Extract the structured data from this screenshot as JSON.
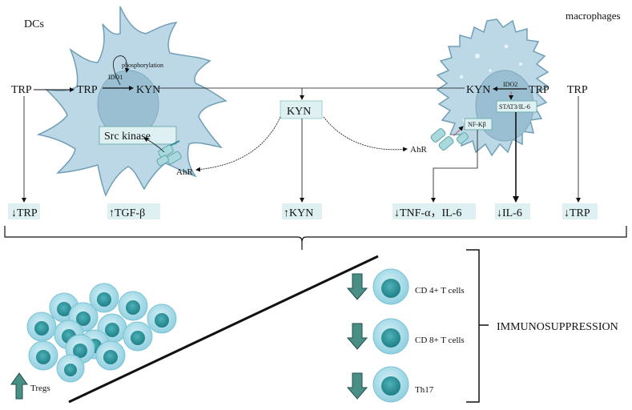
{
  "cells": {
    "dcs": "DCs",
    "macrophages": "macrophages"
  },
  "dc": {
    "trp_outside": "TRP",
    "trp_inside": "TRP",
    "ido1": "IDO1",
    "kyn": "KYN",
    "phosphorylation": "phosphorylation",
    "src_kinase": "Src kinase",
    "ahr": "AhR"
  },
  "center": {
    "kyn": "KYN"
  },
  "mac": {
    "kyn": "KYN",
    "ido2": "IDO2",
    "trp_inside": "TRP",
    "trp_outside": "TRP",
    "stat3": "STAT3/IL-6",
    "nfkb": "NF-Kβ",
    "ahr": "AhR"
  },
  "effects": [
    {
      "arrow": "↓",
      "label": "TRP"
    },
    {
      "arrow": "↑",
      "label": "TGF-β"
    },
    {
      "arrow": "↑",
      "label": "KYN"
    },
    {
      "arrow": "↓",
      "label": "TNF-α，IL-6"
    },
    {
      "arrow": "↓",
      "label": "IL-6"
    },
    {
      "arrow": "↓",
      "label": "TRP"
    }
  ],
  "tregs": "Tregs",
  "tcells": [
    "CD 4+ T cells",
    "CD 8+ T cells",
    "Th17"
  ],
  "outcome": "IMMUNOSUPPRESSION",
  "colors": {
    "cell_fill": "#bcd8e6",
    "cell_stroke": "#6f9fb6",
    "nucleus": "#8fb9cd",
    "box_fill": "#dff0f2",
    "lymph_outer": "#a8dbe8",
    "lymph_inner": "#2d8f97",
    "arrow_fill": "#4a8f86"
  }
}
